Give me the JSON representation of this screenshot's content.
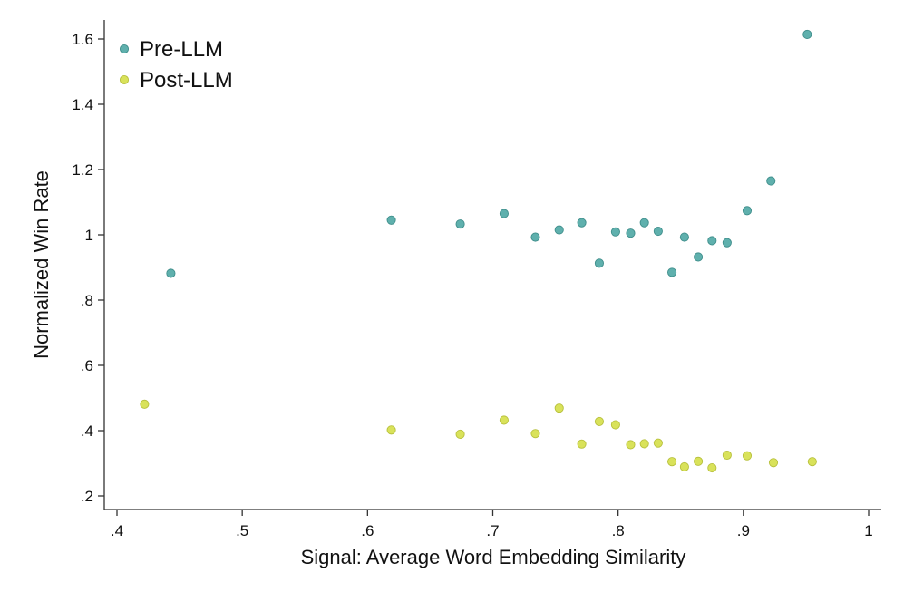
{
  "chart_data": {
    "type": "scatter",
    "title": "",
    "xlabel": "Signal: Average Word Embedding Similarity",
    "ylabel": "Normalized Win Rate",
    "xlim": [
      0.4,
      1.0
    ],
    "ylim": [
      0.16,
      1.65
    ],
    "grid": false,
    "legend_position": "top-left",
    "x_ticks": [
      {
        "value": 0.4,
        "label": ".4"
      },
      {
        "value": 0.5,
        "label": ".5"
      },
      {
        "value": 0.6,
        "label": ".6"
      },
      {
        "value": 0.7,
        "label": ".7"
      },
      {
        "value": 0.8,
        "label": ".8"
      },
      {
        "value": 0.9,
        "label": ".9"
      },
      {
        "value": 1.0,
        "label": "1"
      }
    ],
    "y_ticks": [
      {
        "value": 0.2,
        "label": ".2"
      },
      {
        "value": 0.4,
        "label": ".4"
      },
      {
        "value": 0.6,
        "label": ".6"
      },
      {
        "value": 0.8,
        "label": ".8"
      },
      {
        "value": 1.0,
        "label": "1"
      },
      {
        "value": 1.2,
        "label": "1.2"
      },
      {
        "value": 1.4,
        "label": "1.4"
      },
      {
        "value": 1.6,
        "label": "1.6"
      }
    ],
    "series": [
      {
        "name": "Pre-LLM",
        "color": "#5fb0ad",
        "stroke": "#3f8e8b",
        "points": [
          {
            "x": 0.443,
            "y": 0.882
          },
          {
            "x": 0.619,
            "y": 1.045
          },
          {
            "x": 0.674,
            "y": 1.033
          },
          {
            "x": 0.709,
            "y": 1.065
          },
          {
            "x": 0.734,
            "y": 0.993
          },
          {
            "x": 0.753,
            "y": 1.015
          },
          {
            "x": 0.771,
            "y": 1.037
          },
          {
            "x": 0.785,
            "y": 0.913
          },
          {
            "x": 0.798,
            "y": 1.009
          },
          {
            "x": 0.81,
            "y": 1.005
          },
          {
            "x": 0.821,
            "y": 1.037
          },
          {
            "x": 0.832,
            "y": 1.011
          },
          {
            "x": 0.843,
            "y": 0.885
          },
          {
            "x": 0.853,
            "y": 0.993
          },
          {
            "x": 0.864,
            "y": 0.932
          },
          {
            "x": 0.875,
            "y": 0.982
          },
          {
            "x": 0.887,
            "y": 0.976
          },
          {
            "x": 0.903,
            "y": 1.074
          },
          {
            "x": 0.922,
            "y": 1.165
          },
          {
            "x": 0.951,
            "y": 1.614
          }
        ]
      },
      {
        "name": "Post-LLM",
        "color": "#d9e25a",
        "stroke": "#b7c03c",
        "points": [
          {
            "x": 0.422,
            "y": 0.481
          },
          {
            "x": 0.619,
            "y": 0.402
          },
          {
            "x": 0.674,
            "y": 0.389
          },
          {
            "x": 0.709,
            "y": 0.432
          },
          {
            "x": 0.734,
            "y": 0.391
          },
          {
            "x": 0.753,
            "y": 0.469
          },
          {
            "x": 0.771,
            "y": 0.359
          },
          {
            "x": 0.785,
            "y": 0.428
          },
          {
            "x": 0.798,
            "y": 0.418
          },
          {
            "x": 0.81,
            "y": 0.357
          },
          {
            "x": 0.821,
            "y": 0.36
          },
          {
            "x": 0.832,
            "y": 0.362
          },
          {
            "x": 0.843,
            "y": 0.305
          },
          {
            "x": 0.853,
            "y": 0.289
          },
          {
            "x": 0.864,
            "y": 0.306
          },
          {
            "x": 0.875,
            "y": 0.286
          },
          {
            "x": 0.887,
            "y": 0.325
          },
          {
            "x": 0.903,
            "y": 0.323
          },
          {
            "x": 0.924,
            "y": 0.302
          },
          {
            "x": 0.955,
            "y": 0.305
          }
        ]
      }
    ]
  }
}
